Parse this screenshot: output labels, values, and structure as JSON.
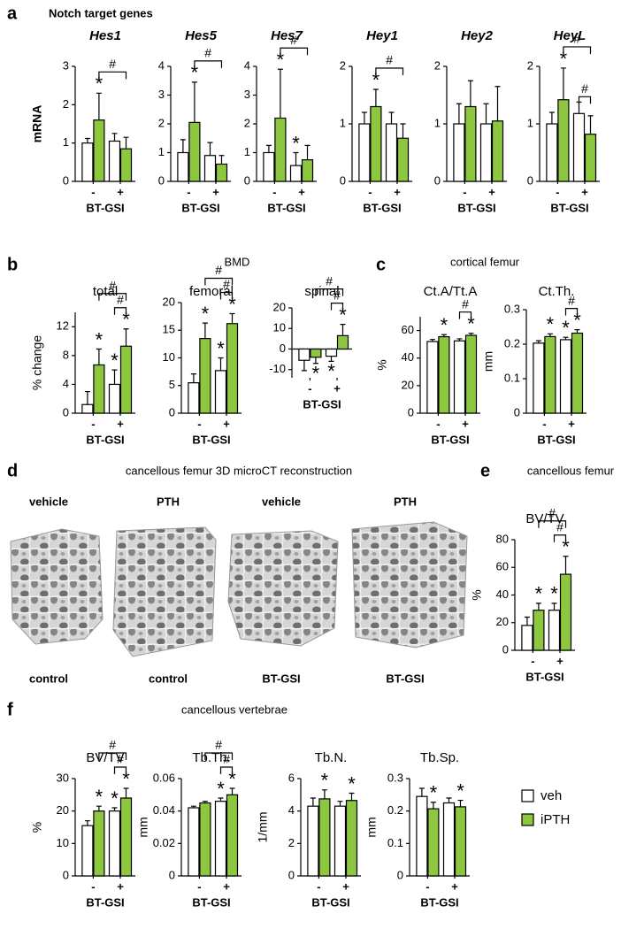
{
  "figure": {
    "panels": [
      {
        "letter": "a",
        "title": "Notch target genes"
      },
      {
        "letter": "b",
        "title": "BMD"
      },
      {
        "letter": "c",
        "title": "cortical femur"
      },
      {
        "letter": "d",
        "title": "cancellous femur 3D microCT reconstruction"
      },
      {
        "letter": "e",
        "title": "cancellous femur"
      },
      {
        "letter": "f",
        "title": "cancellous vertebrae"
      }
    ],
    "microct": {
      "top": [
        "vehicle",
        "PTH",
        "vehicle",
        "PTH"
      ],
      "bottom": [
        "control",
        "control",
        "BT-GSI",
        "BT-GSI"
      ]
    }
  },
  "chart_data": [
    {
      "type": "bar",
      "title": "Hes1",
      "ylabel": "mRNA",
      "xlabel": "BT-GSI",
      "categories": [
        "-",
        "+"
      ],
      "ylim": [
        0,
        3
      ],
      "yticks": [
        0,
        1,
        2,
        3
      ],
      "series": [
        {
          "name": "veh",
          "color": "#ffffff",
          "values": [
            1.0,
            1.05
          ],
          "errors": [
            0.12,
            0.2
          ]
        },
        {
          "name": "iPTH",
          "color": "#8dc63f",
          "values": [
            1.6,
            0.85
          ],
          "errors": [
            0.7,
            0.3
          ],
          "markers": [
            "*",
            null
          ]
        }
      ],
      "comparisons": [
        {
          "label": "#",
          "from": [
            1,
            0
          ],
          "to": [
            1,
            1
          ]
        }
      ]
    },
    {
      "type": "bar",
      "title": "Hes5",
      "xlabel": "BT-GSI",
      "categories": [
        "-",
        "+"
      ],
      "ylim": [
        0,
        4
      ],
      "yticks": [
        0,
        1,
        2,
        3,
        4
      ],
      "series": [
        {
          "name": "veh",
          "color": "#ffffff",
          "values": [
            1.0,
            0.9
          ],
          "errors": [
            0.45,
            0.45
          ]
        },
        {
          "name": "iPTH",
          "color": "#8dc63f",
          "values": [
            2.05,
            0.6
          ],
          "errors": [
            1.4,
            0.3
          ],
          "markers": [
            "*",
            null
          ]
        }
      ],
      "comparisons": [
        {
          "label": "#",
          "from": [
            1,
            0
          ],
          "to": [
            1,
            1
          ]
        }
      ]
    },
    {
      "type": "bar",
      "title": "Hes7",
      "xlabel": "BT-GSI",
      "categories": [
        "-",
        "+"
      ],
      "ylim": [
        0,
        4
      ],
      "yticks": [
        0,
        1,
        2,
        3,
        4
      ],
      "series": [
        {
          "name": "veh",
          "color": "#ffffff",
          "values": [
            1.0,
            0.55
          ],
          "errors": [
            0.25,
            0.45
          ],
          "markers": [
            null,
            "*"
          ]
        },
        {
          "name": "iPTH",
          "color": "#8dc63f",
          "values": [
            2.2,
            0.75
          ],
          "errors": [
            1.7,
            0.5
          ],
          "markers": [
            "*",
            null
          ]
        }
      ],
      "comparisons": [
        {
          "label": "#",
          "from": [
            1,
            0
          ],
          "to": [
            1,
            1
          ]
        }
      ]
    },
    {
      "type": "bar",
      "title": "Hey1",
      "xlabel": "BT-GSI",
      "categories": [
        "-",
        "+"
      ],
      "ylim": [
        0,
        2
      ],
      "yticks": [
        0,
        1,
        2
      ],
      "series": [
        {
          "name": "veh",
          "color": "#ffffff",
          "values": [
            1.0,
            1.0
          ],
          "errors": [
            0.2,
            0.2
          ]
        },
        {
          "name": "iPTH",
          "color": "#8dc63f",
          "values": [
            1.3,
            0.75
          ],
          "errors": [
            0.3,
            0.25
          ],
          "markers": [
            "*",
            null
          ]
        }
      ],
      "comparisons": [
        {
          "label": "#",
          "from": [
            1,
            0
          ],
          "to": [
            1,
            1
          ]
        }
      ]
    },
    {
      "type": "bar",
      "title": "Hey2",
      "xlabel": "BT-GSI",
      "categories": [
        "-",
        "+"
      ],
      "ylim": [
        0,
        2
      ],
      "yticks": [
        0,
        1,
        2
      ],
      "series": [
        {
          "name": "veh",
          "color": "#ffffff",
          "values": [
            1.0,
            1.0
          ],
          "errors": [
            0.35,
            0.35
          ]
        },
        {
          "name": "iPTH",
          "color": "#8dc63f",
          "values": [
            1.3,
            1.05
          ],
          "errors": [
            0.45,
            0.6
          ]
        }
      ]
    },
    {
      "type": "bar",
      "title": "HeyL",
      "xlabel": "BT-GSI",
      "categories": [
        "-",
        "+"
      ],
      "ylim": [
        0,
        2
      ],
      "yticks": [
        0,
        1,
        2
      ],
      "series": [
        {
          "name": "veh",
          "color": "#ffffff",
          "values": [
            1.0,
            1.18
          ],
          "errors": [
            0.2,
            0.2
          ]
        },
        {
          "name": "iPTH",
          "color": "#8dc63f",
          "values": [
            1.42,
            0.82
          ],
          "errors": [
            0.55,
            0.32
          ],
          "markers": [
            "*",
            null
          ]
        }
      ],
      "comparisons": [
        {
          "label": "#",
          "from": [
            1,
            0
          ],
          "to": [
            1,
            1
          ]
        },
        {
          "label": "#",
          "from": [
            0,
            1
          ],
          "to": [
            1,
            1
          ]
        }
      ]
    },
    {
      "type": "bar",
      "title": "total",
      "ylabel": "% change",
      "xlabel": "BT-GSI",
      "categories": [
        "-",
        "+"
      ],
      "ylim": [
        0,
        14
      ],
      "yticks": [
        0,
        4,
        8,
        12
      ],
      "series": [
        {
          "name": "veh",
          "color": "#ffffff",
          "values": [
            1.2,
            4.0
          ],
          "errors": [
            1.8,
            2.0
          ],
          "markers": [
            null,
            "*"
          ]
        },
        {
          "name": "iPTH",
          "color": "#8dc63f",
          "values": [
            6.7,
            9.3
          ],
          "errors": [
            2.2,
            2.4
          ],
          "markers": [
            "*",
            "*"
          ]
        }
      ],
      "comparisons": [
        {
          "label": "#",
          "from": [
            1,
            0
          ],
          "to": [
            1,
            1
          ]
        },
        {
          "label": "#",
          "from": [
            0,
            1
          ],
          "to": [
            1,
            1
          ]
        }
      ]
    },
    {
      "type": "bar",
      "title": "femoral",
      "xlabel": "BT-GSI",
      "categories": [
        "-",
        "+"
      ],
      "ylim": [
        0,
        20
      ],
      "yticks": [
        0,
        5,
        10,
        15,
        20
      ],
      "series": [
        {
          "name": "veh",
          "color": "#ffffff",
          "values": [
            5.5,
            7.7
          ],
          "errors": [
            1.6,
            2.3
          ],
          "markers": [
            null,
            "*"
          ]
        },
        {
          "name": "iPTH",
          "color": "#8dc63f",
          "values": [
            13.5,
            16.2
          ],
          "errors": [
            2.8,
            1.8
          ],
          "markers": [
            "*",
            "*"
          ]
        }
      ],
      "comparisons": [
        {
          "label": "#",
          "from": [
            1,
            0
          ],
          "to": [
            1,
            1
          ]
        },
        {
          "label": "#",
          "from": [
            0,
            1
          ],
          "to": [
            1,
            1
          ]
        }
      ]
    },
    {
      "type": "bar",
      "title": "spinal",
      "xlabel": "BT-GSI",
      "categories": [
        "-",
        "+"
      ],
      "ylim": [
        -14,
        20
      ],
      "yticks": [
        -10,
        0,
        10,
        20
      ],
      "series": [
        {
          "name": "veh",
          "color": "#ffffff",
          "values": [
            -5.5,
            -3.5
          ],
          "errors": [
            5,
            2.5
          ],
          "markers": [
            null,
            "*"
          ]
        },
        {
          "name": "iPTH",
          "color": "#8dc63f",
          "values": [
            -4.0,
            6.5
          ],
          "errors": [
            3,
            5.5
          ],
          "markers": [
            "*",
            "*"
          ]
        }
      ],
      "comparisons": [
        {
          "label": "#",
          "from": [
            1,
            0
          ],
          "to": [
            1,
            1
          ]
        },
        {
          "label": "#",
          "from": [
            0,
            1
          ],
          "to": [
            1,
            1
          ]
        }
      ]
    },
    {
      "type": "bar",
      "title": "Ct.A/Tt.A",
      "ylabel": "%",
      "xlabel": "BT-GSI",
      "categories": [
        "-",
        "+"
      ],
      "ylim": [
        0,
        70
      ],
      "yticks": [
        0,
        20,
        40,
        60
      ],
      "series": [
        {
          "name": "veh",
          "color": "#ffffff",
          "values": [
            52,
            52.5
          ],
          "errors": [
            1.5,
            1.5
          ]
        },
        {
          "name": "iPTH",
          "color": "#8dc63f",
          "values": [
            55.5,
            56.5
          ],
          "errors": [
            1.5,
            1.5
          ],
          "markers": [
            "*",
            "*"
          ]
        }
      ],
      "comparisons": [
        {
          "label": "#",
          "from": [
            0,
            1
          ],
          "to": [
            1,
            1
          ]
        }
      ]
    },
    {
      "type": "bar",
      "title": "Ct.Th.",
      "ylabel": "mm",
      "xlabel": "BT-GSI",
      "categories": [
        "-",
        "+"
      ],
      "ylim": [
        0,
        0.3
      ],
      "yticks": [
        0,
        0.1,
        0.2,
        0.3
      ],
      "series": [
        {
          "name": "veh",
          "color": "#ffffff",
          "values": [
            0.203,
            0.213
          ],
          "errors": [
            0.007,
            0.007
          ],
          "markers": [
            null,
            "*"
          ]
        },
        {
          "name": "iPTH",
          "color": "#8dc63f",
          "values": [
            0.222,
            0.232
          ],
          "errors": [
            0.008,
            0.01
          ],
          "markers": [
            "*",
            "*"
          ]
        }
      ],
      "comparisons": [
        {
          "label": "#",
          "from": [
            0,
            1
          ],
          "to": [
            1,
            1
          ]
        }
      ]
    },
    {
      "type": "bar",
      "title": "BV/TV",
      "ylabel": "%",
      "xlabel": "BT-GSI",
      "categories": [
        "-",
        "+"
      ],
      "ylim": [
        0,
        80
      ],
      "yticks": [
        0,
        20,
        40,
        60,
        80
      ],
      "series": [
        {
          "name": "veh",
          "color": "#ffffff",
          "values": [
            18,
            29
          ],
          "errors": [
            6,
            5
          ],
          "markers": [
            null,
            "*"
          ]
        },
        {
          "name": "iPTH",
          "color": "#8dc63f",
          "values": [
            29,
            55
          ],
          "errors": [
            5,
            13
          ],
          "markers": [
            "*",
            "*"
          ]
        }
      ],
      "comparisons": [
        {
          "label": "#",
          "from": [
            1,
            0
          ],
          "to": [
            1,
            1
          ]
        },
        {
          "label": "#",
          "from": [
            0,
            1
          ],
          "to": [
            1,
            1
          ]
        }
      ]
    },
    {
      "type": "bar",
      "title": "BV/TV",
      "ylabel": "%",
      "xlabel": "BT-GSI",
      "categories": [
        "-",
        "+"
      ],
      "ylim": [
        0,
        30
      ],
      "yticks": [
        0,
        10,
        20,
        30
      ],
      "series": [
        {
          "name": "veh",
          "color": "#ffffff",
          "values": [
            15.5,
            20
          ],
          "errors": [
            1.5,
            1
          ],
          "markers": [
            null,
            "*"
          ]
        },
        {
          "name": "iPTH",
          "color": "#8dc63f",
          "values": [
            20,
            24
          ],
          "errors": [
            1.5,
            3
          ],
          "markers": [
            "*",
            "*"
          ]
        }
      ],
      "comparisons": [
        {
          "label": "#",
          "from": [
            1,
            0
          ],
          "to": [
            1,
            1
          ]
        },
        {
          "label": "#",
          "from": [
            0,
            1
          ],
          "to": [
            1,
            1
          ]
        }
      ]
    },
    {
      "type": "bar",
      "title": "Tb.Th.",
      "ylabel": "mm",
      "xlabel": "BT-GSI",
      "categories": [
        "-",
        "+"
      ],
      "ylim": [
        0,
        0.06
      ],
      "yticks": [
        0,
        0.02,
        0.04,
        0.06
      ],
      "series": [
        {
          "name": "veh",
          "color": "#ffffff",
          "values": [
            0.042,
            0.046
          ],
          "errors": [
            0.001,
            0.002
          ],
          "markers": [
            null,
            "*"
          ]
        },
        {
          "name": "iPTH",
          "color": "#8dc63f",
          "values": [
            0.045,
            0.05
          ],
          "errors": [
            0.001,
            0.004
          ],
          "markers": [
            null,
            "*"
          ]
        }
      ],
      "comparisons": [
        {
          "label": "#",
          "from": [
            1,
            0
          ],
          "to": [
            1,
            1
          ]
        },
        {
          "label": "#",
          "from": [
            0,
            1
          ],
          "to": [
            1,
            1
          ]
        }
      ]
    },
    {
      "type": "bar",
      "title": "Tb.N.",
      "ylabel": "1/mm",
      "xlabel": "BT-GSI",
      "categories": [
        "-",
        "+"
      ],
      "ylim": [
        0,
        6
      ],
      "yticks": [
        0,
        2,
        4,
        6
      ],
      "series": [
        {
          "name": "veh",
          "color": "#ffffff",
          "values": [
            4.3,
            4.3
          ],
          "errors": [
            0.5,
            0.3
          ]
        },
        {
          "name": "iPTH",
          "color": "#8dc63f",
          "values": [
            4.75,
            4.65
          ],
          "errors": [
            0.55,
            0.45
          ],
          "markers": [
            "*",
            "*"
          ]
        }
      ]
    },
    {
      "type": "bar",
      "title": "Tb.Sp.",
      "ylabel": "mm",
      "xlabel": "BT-GSI",
      "categories": [
        "-",
        "+"
      ],
      "ylim": [
        0,
        0.3
      ],
      "yticks": [
        0,
        0.1,
        0.2,
        0.3
      ],
      "series": [
        {
          "name": "veh",
          "color": "#ffffff",
          "values": [
            0.245,
            0.225
          ],
          "errors": [
            0.025,
            0.015
          ]
        },
        {
          "name": "iPTH",
          "color": "#8dc63f",
          "values": [
            0.207,
            0.213
          ],
          "errors": [
            0.02,
            0.02
          ],
          "markers": [
            "*",
            "*"
          ]
        }
      ],
      "legend": "right"
    }
  ]
}
